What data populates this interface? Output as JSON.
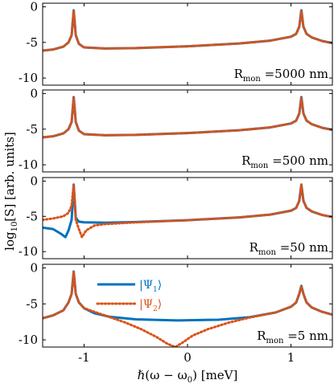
{
  "colors": {
    "psi1": "#0072BD",
    "psi2": "#D95319",
    "axes": "#000000"
  },
  "chart_data": [
    {
      "type": "line",
      "xlim": [
        -1.4,
        1.4
      ],
      "ylim": [
        -11,
        0.5
      ],
      "yticks": [
        0,
        -5,
        -10
      ],
      "ytick_labels": [
        "0",
        "-5",
        "-10"
      ],
      "annotation": {
        "main": "R",
        "sub": "mon",
        "rest": " =5000 nm"
      },
      "series": [
        {
          "key": "psi1",
          "style": "solid",
          "points": [
            [
              -1.4,
              -6.15
            ],
            [
              -1.3,
              -6.0
            ],
            [
              -1.2,
              -5.6
            ],
            [
              -1.15,
              -5.0
            ],
            [
              -1.12,
              -4.0
            ],
            [
              -1.1,
              -0.5
            ],
            [
              -1.08,
              -4.0
            ],
            [
              -1.05,
              -5.2
            ],
            [
              -1.0,
              -5.7
            ],
            [
              -0.8,
              -5.85
            ],
            [
              -0.5,
              -5.8
            ],
            [
              0.0,
              -5.55
            ],
            [
              0.5,
              -5.15
            ],
            [
              0.8,
              -4.75
            ],
            [
              1.0,
              -4.2
            ],
            [
              1.05,
              -3.8
            ],
            [
              1.08,
              -2.8
            ],
            [
              1.1,
              -0.5
            ],
            [
              1.12,
              -2.8
            ],
            [
              1.15,
              -3.8
            ],
            [
              1.2,
              -4.3
            ],
            [
              1.3,
              -4.8
            ],
            [
              1.4,
              -5.1
            ]
          ]
        },
        {
          "key": "psi2",
          "style": "dotted",
          "points": [
            [
              -1.4,
              -6.15
            ],
            [
              -1.3,
              -6.0
            ],
            [
              -1.2,
              -5.6
            ],
            [
              -1.15,
              -5.0
            ],
            [
              -1.12,
              -4.0
            ],
            [
              -1.1,
              -0.5
            ],
            [
              -1.08,
              -4.0
            ],
            [
              -1.05,
              -5.2
            ],
            [
              -1.0,
              -5.7
            ],
            [
              -0.8,
              -5.85
            ],
            [
              -0.5,
              -5.8
            ],
            [
              0.0,
              -5.55
            ],
            [
              0.5,
              -5.15
            ],
            [
              0.8,
              -4.75
            ],
            [
              1.0,
              -4.2
            ],
            [
              1.05,
              -3.8
            ],
            [
              1.08,
              -2.8
            ],
            [
              1.1,
              -0.5
            ],
            [
              1.12,
              -2.8
            ],
            [
              1.15,
              -3.8
            ],
            [
              1.2,
              -4.3
            ],
            [
              1.3,
              -4.8
            ],
            [
              1.4,
              -5.1
            ]
          ]
        }
      ]
    },
    {
      "type": "line",
      "xlim": [
        -1.4,
        1.4
      ],
      "ylim": [
        -11,
        0.5
      ],
      "yticks": [
        0,
        -5,
        -10
      ],
      "ytick_labels": [
        "0",
        "-5",
        "-10"
      ],
      "annotation": {
        "main": "R",
        "sub": "mon",
        "rest": " =500 nm"
      },
      "series": [
        {
          "key": "psi1",
          "style": "solid",
          "points": [
            [
              -1.4,
              -6.15
            ],
            [
              -1.3,
              -6.0
            ],
            [
              -1.2,
              -5.6
            ],
            [
              -1.15,
              -5.0
            ],
            [
              -1.12,
              -4.0
            ],
            [
              -1.1,
              -0.5
            ],
            [
              -1.08,
              -4.0
            ],
            [
              -1.05,
              -5.2
            ],
            [
              -1.0,
              -5.7
            ],
            [
              -0.8,
              -5.85
            ],
            [
              -0.5,
              -5.8
            ],
            [
              0.0,
              -5.55
            ],
            [
              0.5,
              -5.15
            ],
            [
              0.8,
              -4.75
            ],
            [
              1.0,
              -4.2
            ],
            [
              1.05,
              -3.8
            ],
            [
              1.08,
              -2.8
            ],
            [
              1.1,
              -0.5
            ],
            [
              1.12,
              -2.8
            ],
            [
              1.15,
              -3.8
            ],
            [
              1.2,
              -4.3
            ],
            [
              1.3,
              -4.8
            ],
            [
              1.4,
              -5.1
            ]
          ]
        },
        {
          "key": "psi2",
          "style": "dotted",
          "points": [
            [
              -1.4,
              -6.15
            ],
            [
              -1.3,
              -6.0
            ],
            [
              -1.2,
              -5.6
            ],
            [
              -1.15,
              -5.0
            ],
            [
              -1.12,
              -4.0
            ],
            [
              -1.1,
              -0.5
            ],
            [
              -1.08,
              -4.0
            ],
            [
              -1.05,
              -5.2
            ],
            [
              -1.0,
              -5.7
            ],
            [
              -0.8,
              -5.85
            ],
            [
              -0.5,
              -5.8
            ],
            [
              0.0,
              -5.55
            ],
            [
              0.5,
              -5.15
            ],
            [
              0.8,
              -4.75
            ],
            [
              1.0,
              -4.2
            ],
            [
              1.05,
              -3.8
            ],
            [
              1.08,
              -2.8
            ],
            [
              1.1,
              -0.5
            ],
            [
              1.12,
              -2.8
            ],
            [
              1.15,
              -3.8
            ],
            [
              1.2,
              -4.3
            ],
            [
              1.3,
              -4.8
            ],
            [
              1.4,
              -5.1
            ]
          ]
        }
      ]
    },
    {
      "type": "line",
      "xlim": [
        -1.4,
        1.4
      ],
      "ylim": [
        -11,
        0.5
      ],
      "yticks": [
        0,
        -5,
        -10
      ],
      "ytick_labels": [
        "0",
        "-5",
        "-10"
      ],
      "annotation": {
        "main": "R",
        "sub": "mon",
        "rest": " =50 nm"
      },
      "series": [
        {
          "key": "psi1",
          "style": "solid",
          "points": [
            [
              -1.4,
              -6.6
            ],
            [
              -1.3,
              -6.8
            ],
            [
              -1.22,
              -7.5
            ],
            [
              -1.18,
              -7.95
            ],
            [
              -1.15,
              -7.0
            ],
            [
              -1.12,
              -5.5
            ],
            [
              -1.1,
              -0.5
            ],
            [
              -1.08,
              -5.2
            ],
            [
              -1.05,
              -5.75
            ],
            [
              -1.0,
              -5.85
            ],
            [
              -0.8,
              -5.9
            ],
            [
              -0.5,
              -5.8
            ],
            [
              0.0,
              -5.55
            ],
            [
              0.5,
              -5.15
            ],
            [
              0.8,
              -4.75
            ],
            [
              1.0,
              -4.2
            ],
            [
              1.05,
              -3.8
            ],
            [
              1.08,
              -2.8
            ],
            [
              1.1,
              -0.5
            ],
            [
              1.12,
              -2.8
            ],
            [
              1.15,
              -3.8
            ],
            [
              1.2,
              -4.3
            ],
            [
              1.3,
              -4.8
            ],
            [
              1.4,
              -5.1
            ]
          ]
        },
        {
          "key": "psi2",
          "style": "dotted",
          "points": [
            [
              -1.4,
              -5.5
            ],
            [
              -1.3,
              -5.3
            ],
            [
              -1.2,
              -5.0
            ],
            [
              -1.15,
              -4.5
            ],
            [
              -1.12,
              -3.5
            ],
            [
              -1.1,
              -0.5
            ],
            [
              -1.08,
              -5.5
            ],
            [
              -1.05,
              -6.8
            ],
            [
              -1.02,
              -7.95
            ],
            [
              -0.98,
              -7.0
            ],
            [
              -0.9,
              -6.3
            ],
            [
              -0.8,
              -6.1
            ],
            [
              -0.5,
              -5.85
            ],
            [
              0.0,
              -5.55
            ],
            [
              0.5,
              -5.15
            ],
            [
              0.8,
              -4.75
            ],
            [
              1.0,
              -4.2
            ],
            [
              1.05,
              -3.8
            ],
            [
              1.08,
              -2.8
            ],
            [
              1.1,
              -0.5
            ],
            [
              1.12,
              -2.8
            ],
            [
              1.15,
              -3.8
            ],
            [
              1.2,
              -4.3
            ],
            [
              1.3,
              -4.8
            ],
            [
              1.4,
              -5.1
            ]
          ]
        }
      ]
    },
    {
      "type": "line",
      "xlim": [
        -1.4,
        1.4
      ],
      "ylim": [
        -11,
        0.5
      ],
      "yticks": [
        0,
        -5,
        -10
      ],
      "ytick_labels": [
        "0",
        "-5",
        "-10"
      ],
      "xticks": [
        -1,
        0,
        1
      ],
      "xtick_labels": [
        "-1",
        "0",
        "1"
      ],
      "annotation": {
        "main": "R",
        "sub": "mon",
        "rest": " =5 nm"
      },
      "legend": {
        "entries": [
          {
            "key": "psi1",
            "style": "solid",
            "label_main": "|Ψ",
            "label_sub": "1",
            "label_end": "⟩"
          },
          {
            "key": "psi2",
            "style": "dotted",
            "label_main": "|Ψ",
            "label_sub": "2",
            "label_end": "⟩"
          }
        ]
      },
      "series": [
        {
          "key": "psi1",
          "style": "solid",
          "points": [
            [
              -1.4,
              -7.0
            ],
            [
              -1.3,
              -6.6
            ],
            [
              -1.2,
              -5.9
            ],
            [
              -1.15,
              -4.8
            ],
            [
              -1.12,
              -3.6
            ],
            [
              -1.1,
              -0.5
            ],
            [
              -1.08,
              -3.6
            ],
            [
              -1.05,
              -4.8
            ],
            [
              -1.0,
              -5.6
            ],
            [
              -0.9,
              -6.3
            ],
            [
              -0.75,
              -6.8
            ],
            [
              -0.5,
              -7.15
            ],
            [
              -0.1,
              -7.3
            ],
            [
              0.3,
              -7.2
            ],
            [
              0.6,
              -6.85
            ],
            [
              0.85,
              -6.2
            ],
            [
              1.0,
              -5.4
            ],
            [
              1.05,
              -4.8
            ],
            [
              1.08,
              -3.6
            ],
            [
              1.1,
              -2.5
            ],
            [
              1.12,
              -3.6
            ],
            [
              1.15,
              -4.8
            ],
            [
              1.2,
              -5.5
            ],
            [
              1.3,
              -6.1
            ],
            [
              1.4,
              -6.5
            ]
          ]
        },
        {
          "key": "psi2",
          "style": "dotted",
          "points": [
            [
              -1.4,
              -7.0
            ],
            [
              -1.3,
              -6.6
            ],
            [
              -1.2,
              -5.9
            ],
            [
              -1.15,
              -4.8
            ],
            [
              -1.12,
              -3.6
            ],
            [
              -1.1,
              -0.5
            ],
            [
              -1.08,
              -3.6
            ],
            [
              -1.05,
              -4.8
            ],
            [
              -1.0,
              -5.6
            ],
            [
              -0.8,
              -6.6
            ],
            [
              -0.6,
              -7.6
            ],
            [
              -0.45,
              -8.5
            ],
            [
              -0.3,
              -9.6
            ],
            [
              -0.2,
              -10.5
            ],
            [
              -0.12,
              -11.0
            ],
            [
              -0.05,
              -10.4
            ],
            [
              0.05,
              -9.4
            ],
            [
              0.2,
              -8.5
            ],
            [
              0.4,
              -7.6
            ],
            [
              0.6,
              -6.9
            ],
            [
              0.85,
              -6.2
            ],
            [
              1.0,
              -5.4
            ],
            [
              1.05,
              -4.8
            ],
            [
              1.08,
              -3.6
            ],
            [
              1.1,
              -2.5
            ],
            [
              1.12,
              -3.6
            ],
            [
              1.15,
              -4.8
            ],
            [
              1.2,
              -5.5
            ],
            [
              1.3,
              -6.1
            ],
            [
              1.4,
              -6.5
            ]
          ]
        }
      ]
    }
  ],
  "ylabel": {
    "a": "log",
    "b": "10",
    "c": "[S] [arb. units]"
  },
  "xlabel": {
    "a": "ℏ(ω − ω",
    "b": "0",
    "c": ") [meV]"
  }
}
